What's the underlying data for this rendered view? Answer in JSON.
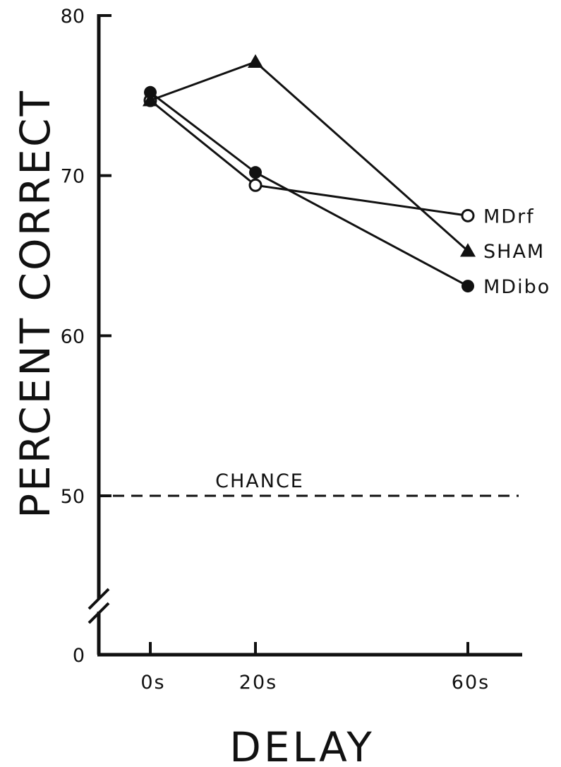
{
  "chart_data": {
    "type": "line",
    "xlabel": "DELAY",
    "ylabel": "PERCENT CORRECT",
    "categories": [
      "0s",
      "20s",
      "60s"
    ],
    "y_ticks": [
      0,
      50,
      60,
      70,
      80
    ],
    "ylim": [
      0,
      80
    ],
    "axis_break": "between 0 and 50",
    "reference_line": {
      "label": "CHANCE",
      "value": 50,
      "style": "dashed"
    },
    "legend_placement": "right, at line ends",
    "series": [
      {
        "name": "MDrf",
        "marker": "open-circle",
        "values": [
          74.7,
          69.4,
          67.5
        ]
      },
      {
        "name": "SHAM",
        "marker": "filled-triangle",
        "values": [
          74.7,
          77.1,
          65.3
        ]
      },
      {
        "name": "MDibo",
        "marker": "filled-circle",
        "values": [
          75.2,
          70.2,
          63.1
        ]
      }
    ]
  }
}
